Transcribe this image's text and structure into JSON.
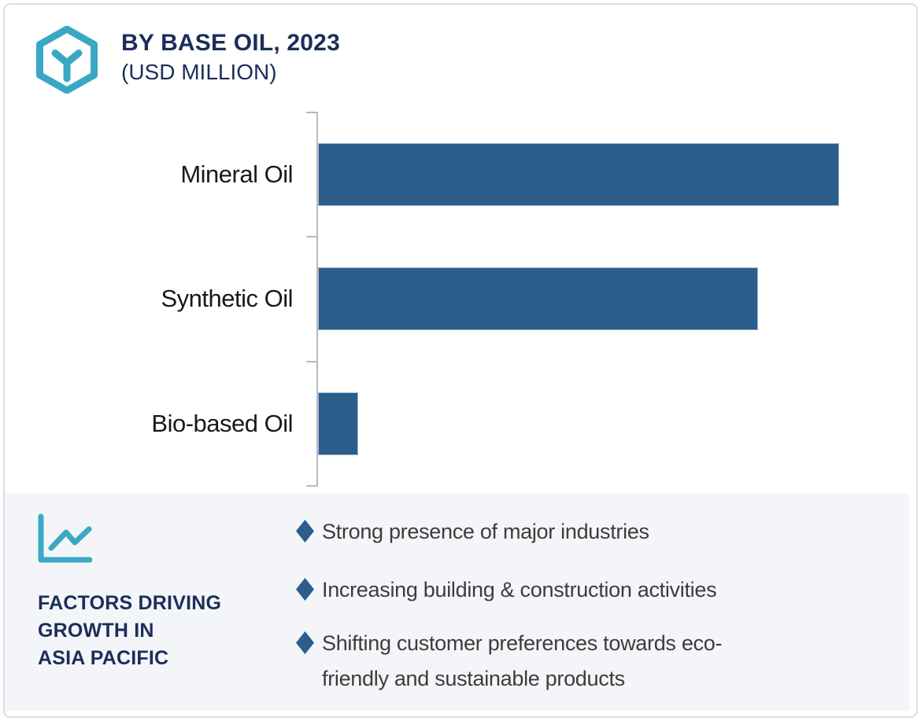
{
  "header": {
    "title": "BY BASE OIL, 2023",
    "subtitle": "(USD MILLION)",
    "title_color": "#1b2d5a",
    "logo_icon": "hexagon-cube-icon",
    "logo_color": "#3aa8c5"
  },
  "chart_data": {
    "type": "bar",
    "orientation": "horizontal",
    "title": "BY BASE OIL, 2023 (USD MILLION)",
    "unit": "USD Million",
    "categories": [
      "Mineral Oil",
      "Synthetic Oil",
      "Bio-based Oil"
    ],
    "values_relative": [
      100,
      84.5,
      7.7
    ],
    "value_labels_shown": false,
    "axis_tick_labels_shown": false,
    "grid": false,
    "bar_color": "#2c5d8b",
    "axis_color": "#b9b9b9",
    "label_color": "#191919"
  },
  "factors": {
    "icon": "line-chart-icon",
    "icon_color": "#3aa8c5",
    "heading": "FACTORS DRIVING\nGROWTH IN\nASIA PACIFIC",
    "heading_color": "#1b2d5a",
    "panel_bg": "#f4f5f8",
    "bullet_color": "#2c5d8b",
    "bullets": [
      "Strong presence of major industries",
      "Increasing building & construction activities",
      "Shifting customer preferences towards eco-\nfriendly and sustainable products"
    ]
  }
}
